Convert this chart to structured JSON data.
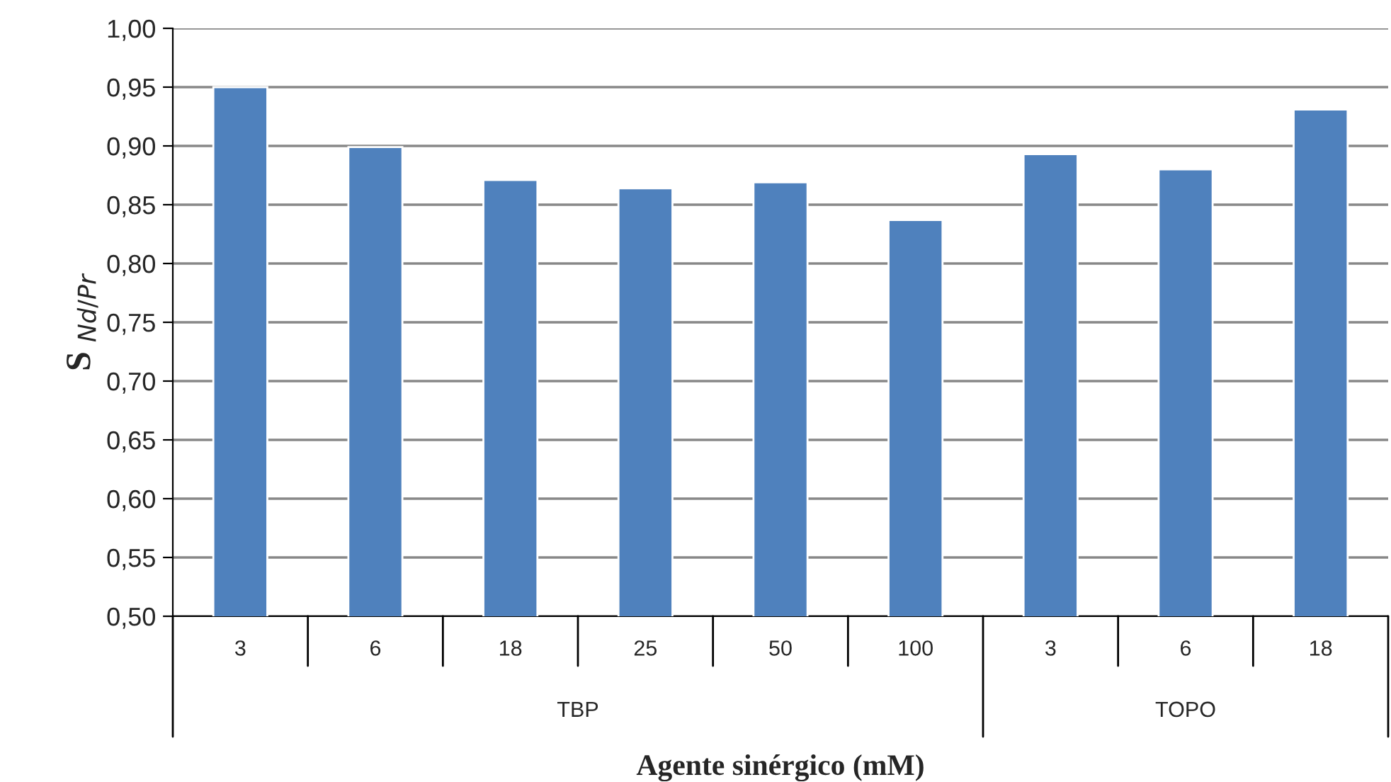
{
  "chart_data": {
    "type": "bar",
    "xlabel": "Agente sinérgico (mM)",
    "ylabel": "S $_{Nd/Pr}$",
    "categories": [
      "3",
      "6",
      "18",
      "25",
      "50",
      "100",
      "3",
      "6",
      "18"
    ],
    "values": [
      0.95,
      0.899,
      0.871,
      0.864,
      0.869,
      0.837,
      0.893,
      0.88,
      0.931
    ],
    "color": "#4f81bd",
    "ylim": [
      0.5,
      1.0
    ],
    "yticks": [
      {
        "value": 0.5,
        "label": "0,50"
      },
      {
        "value": 0.55,
        "label": "0,55"
      },
      {
        "value": 0.6,
        "label": "0,60"
      },
      {
        "value": 0.65,
        "label": "0,65"
      },
      {
        "value": 0.7,
        "label": "0,70"
      },
      {
        "value": 0.75,
        "label": "0,75"
      },
      {
        "value": 0.8,
        "label": "0,80"
      },
      {
        "value": 0.85,
        "label": "0,85"
      },
      {
        "value": 0.9,
        "label": "0,90"
      },
      {
        "value": 0.95,
        "label": "0,95"
      },
      {
        "value": 1.0,
        "label": "1,00"
      }
    ],
    "grid": "y",
    "annotations": [
      "TBP",
      "TOPO"
    ]
  }
}
